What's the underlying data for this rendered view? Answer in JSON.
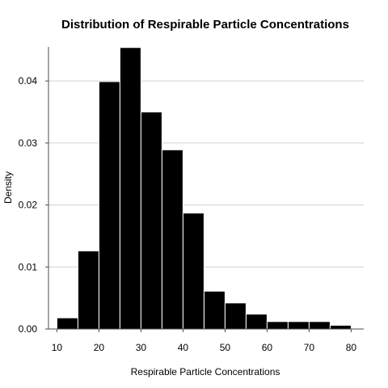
{
  "chart_data": {
    "type": "bar",
    "histogram": true,
    "title": "Distribution of Respirable Particle Concentrations",
    "xlabel": "Respirable Particle Concentrations",
    "ylabel": "Density",
    "bins": [
      {
        "x0": 10,
        "x1": 15,
        "density": 0.0018
      },
      {
        "x0": 15,
        "x1": 20,
        "density": 0.0126
      },
      {
        "x0": 20,
        "x1": 25,
        "density": 0.0399
      },
      {
        "x0": 25,
        "x1": 30,
        "density": 0.0454
      },
      {
        "x0": 30,
        "x1": 35,
        "density": 0.035
      },
      {
        "x0": 35,
        "x1": 40,
        "density": 0.0289
      },
      {
        "x0": 40,
        "x1": 45,
        "density": 0.0187
      },
      {
        "x0": 45,
        "x1": 50,
        "density": 0.0061
      },
      {
        "x0": 50,
        "x1": 55,
        "density": 0.0042
      },
      {
        "x0": 55,
        "x1": 60,
        "density": 0.0024
      },
      {
        "x0": 60,
        "x1": 65,
        "density": 0.0012
      },
      {
        "x0": 65,
        "x1": 70,
        "density": 0.0012
      },
      {
        "x0": 70,
        "x1": 75,
        "density": 0.0012
      },
      {
        "x0": 75,
        "x1": 80,
        "density": 0.0006
      }
    ],
    "xlim": [
      8,
      83
    ],
    "ylim": [
      0,
      0.0455
    ],
    "xticks": [
      "10",
      "20",
      "30",
      "40",
      "50",
      "60",
      "70",
      "80"
    ],
    "yticks": [
      "0.00",
      "0.01",
      "0.02",
      "0.03",
      "0.04"
    ],
    "grid": "horizontal",
    "colors": {
      "bar_fill": "#000000",
      "bar_edge": "#ffffff",
      "grid": "#d0d0d0",
      "axis": "#4d4d4d"
    }
  }
}
